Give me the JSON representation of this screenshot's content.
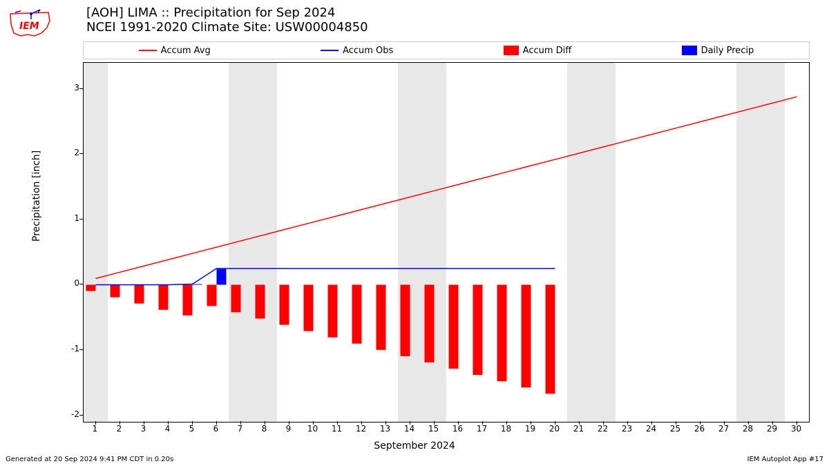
{
  "title_line1": "[AOH] LIMA :: Precipitation for Sep 2024",
  "title_line2": "NCEI 1991-2020 Climate Site: USW00004850",
  "footer_left": "Generated at 20 Sep 2024 9:41 PM CDT in 0.20s",
  "footer_right": "IEM Autoplot App #17",
  "ylabel": "Precipitation [inch]",
  "xlabel": "September 2024",
  "legend": {
    "accum_avg": "Accum Avg",
    "accum_obs": "Accum Obs",
    "accum_diff": "Accum Diff",
    "daily_precip": "Daily Precip"
  },
  "chart": {
    "type": "mixed-bar-line",
    "background_color": "#ffffff",
    "weekend_band_color": "#e8e8e8",
    "border_color": "#000000",
    "xlim": [
      0.5,
      30.5
    ],
    "ylim": [
      -2.1,
      3.4
    ],
    "ytick_step": 1,
    "yticks": [
      -2,
      -1,
      0,
      1,
      2,
      3
    ],
    "xticks": [
      1,
      2,
      3,
      4,
      5,
      6,
      7,
      8,
      9,
      10,
      11,
      12,
      13,
      14,
      15,
      16,
      17,
      18,
      19,
      20,
      21,
      22,
      23,
      24,
      25,
      26,
      27,
      28,
      29,
      30
    ],
    "weekend_days": [
      1,
      7,
      8,
      14,
      15,
      21,
      22,
      28,
      29
    ],
    "series": {
      "accum_avg": {
        "type": "line",
        "color": "#ff0000",
        "width": 1.5,
        "x": [
          1,
          2,
          3,
          4,
          5,
          6,
          7,
          8,
          9,
          10,
          11,
          12,
          13,
          14,
          15,
          16,
          17,
          18,
          19,
          20,
          21,
          22,
          23,
          24,
          25,
          26,
          27,
          28,
          29,
          30
        ],
        "y": [
          0.096,
          0.192,
          0.288,
          0.384,
          0.48,
          0.576,
          0.672,
          0.768,
          0.864,
          0.96,
          1.056,
          1.152,
          1.248,
          1.344,
          1.44,
          1.536,
          1.632,
          1.728,
          1.824,
          1.92,
          2.016,
          2.112,
          2.208,
          2.304,
          2.4,
          2.496,
          2.592,
          2.688,
          2.784,
          2.88
        ]
      },
      "accum_obs": {
        "type": "line",
        "color": "#0000ff",
        "width": 1.5,
        "x": [
          1,
          2,
          3,
          4,
          5,
          6,
          7,
          8,
          9,
          10,
          11,
          12,
          13,
          14,
          15,
          16,
          17,
          18,
          19,
          20
        ],
        "y": [
          0.0,
          0.0,
          0.0,
          0.0,
          0.01,
          0.25,
          0.25,
          0.25,
          0.25,
          0.25,
          0.25,
          0.25,
          0.25,
          0.25,
          0.25,
          0.25,
          0.25,
          0.25,
          0.25,
          0.25
        ]
      },
      "accum_diff": {
        "type": "bar",
        "color": "#ff0000",
        "bar_width": 0.4,
        "x": [
          1,
          2,
          3,
          4,
          5,
          6,
          7,
          8,
          9,
          10,
          11,
          12,
          13,
          14,
          15,
          16,
          17,
          18,
          19,
          20
        ],
        "y": [
          -0.096,
          -0.192,
          -0.288,
          -0.384,
          -0.47,
          -0.326,
          -0.422,
          -0.518,
          -0.614,
          -0.71,
          -0.806,
          -0.902,
          -0.998,
          -1.094,
          -1.19,
          -1.286,
          -1.382,
          -1.478,
          -1.574,
          -1.67
        ]
      },
      "daily_precip": {
        "type": "bar",
        "color": "#0000ff",
        "bar_width": 0.4,
        "x": [
          1,
          2,
          3,
          4,
          5,
          6,
          7,
          8,
          9,
          10,
          11,
          12,
          13,
          14,
          15,
          16,
          17,
          18,
          19,
          20
        ],
        "y": [
          0.0,
          0.0,
          0.0,
          0.0,
          0.01,
          0.24,
          0.0,
          0.0,
          0.0,
          0.0,
          0.0,
          0.0,
          0.0,
          0.0,
          0.0,
          0.0,
          0.0,
          0.0,
          0.0,
          0.0
        ]
      }
    },
    "title_fontsize": 18,
    "label_fontsize": 14,
    "tick_fontsize": 12
  },
  "colors": {
    "red": "#ff0000",
    "blue": "#0000ff",
    "band": "#e8e8e8",
    "text": "#000000"
  }
}
